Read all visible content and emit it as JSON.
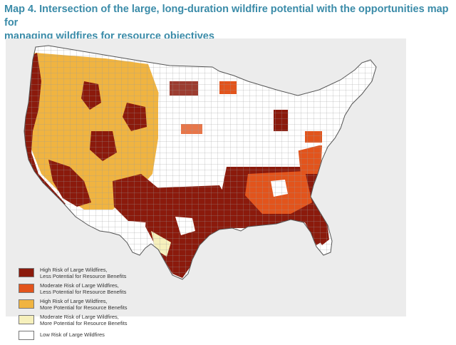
{
  "title_line1": "Map 4. Intersection of the large, long-duration wildfire potential with the opportunities map for",
  "title_line2": "managing wildfires for resource objectives",
  "legend": [
    {
      "line1": "High Risk of Large Wildfires,",
      "line2": "Less Potential for Resource Benefits",
      "color": "#8b1a0c"
    },
    {
      "line1": "Moderate Risk of Large Wildfires,",
      "line2": "Less Potential for Resource Benefits",
      "color": "#e2541c"
    },
    {
      "line1": "High Risk of Large Wildfires,",
      "line2": "More Potential for Resource Benefits",
      "color": "#f0b441"
    },
    {
      "line1": "Moderate Risk of Large Wildfires,",
      "line2": "More Potential for Resource Benefits",
      "color": "#f6f0bc"
    },
    {
      "line1": "Low Risk of Large Wildfires",
      "line2": "",
      "color": "#ffffff"
    }
  ]
}
